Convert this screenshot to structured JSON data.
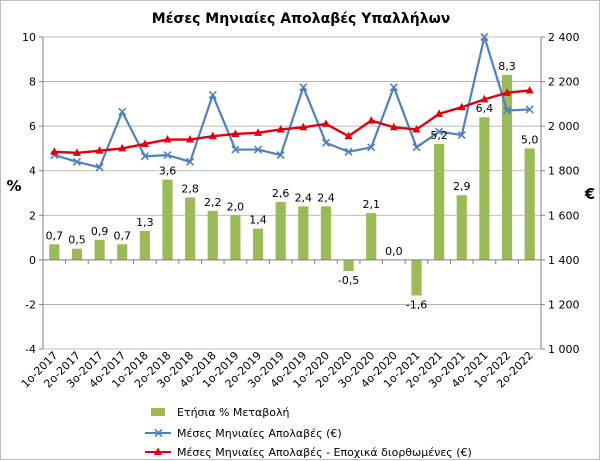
{
  "chart_data": {
    "type": "bar",
    "title": "Μέσες Μηνιαίες Απολαβές Υπαλλήλων",
    "y_left_unit": "%",
    "y_right_unit": "€",
    "y_left_lim": [
      -4,
      10
    ],
    "y_left_ticks": [
      "-4",
      "-2",
      "0",
      "2",
      "4",
      "6",
      "8",
      "10"
    ],
    "y_right_lim": [
      1000,
      2400
    ],
    "y_right_ticks": [
      "1 000",
      "1 200",
      "1 400",
      "1 600",
      "1 800",
      "2 000",
      "2 200",
      "2 400"
    ],
    "grid": true,
    "legend_position": "bottom-left",
    "categories": [
      "1o-2017",
      "2o-2017",
      "3o-2017",
      "4o-2017",
      "1o-2018",
      "2o-2018",
      "3o-2018",
      "4o-2018",
      "1o-2019",
      "2o-2019",
      "3o-2019",
      "4o-2019",
      "1o-2020",
      "2o-2020",
      "3o-2020",
      "4o-2020",
      "1o-2021",
      "2o-2021",
      "3o-2021",
      "4o-2021",
      "1o-2022",
      "2o-2022"
    ],
    "series": [
      {
        "name": "Ετήσια % Μεταβολή",
        "type": "bar",
        "axis": "left",
        "color": "#9bbb59",
        "values": [
          0.7,
          0.5,
          0.9,
          0.7,
          1.3,
          3.6,
          2.8,
          2.2,
          2.0,
          1.4,
          2.6,
          2.4,
          2.4,
          -0.5,
          2.1,
          0.0,
          -1.6,
          5.2,
          2.9,
          6.4,
          8.3,
          5.0
        ],
        "labels": [
          "0,7",
          "0,5",
          "0,9",
          "0,7",
          "1,3",
          "3,6",
          "2,8",
          "2,2",
          "2,0",
          "1,4",
          "2,6",
          "2,4",
          "2,4",
          "-0,5",
          "2,1",
          "0,0",
          "-1,6",
          "5,2",
          "2,9",
          "6,4",
          "8,3",
          "5,0"
        ]
      },
      {
        "name": "Μέσες Μηνιαίες Απολαβές (€)",
        "type": "line",
        "axis": "right",
        "color": "#4f81bd",
        "marker": "x",
        "values": [
          1870,
          1840,
          1815,
          2065,
          1865,
          1870,
          1840,
          2140,
          1895,
          1895,
          1870,
          2175,
          1925,
          1885,
          1905,
          2175,
          1905,
          1975,
          1960,
          2400,
          2070,
          2075
        ]
      },
      {
        "name": "Μέσες Μηνιαίες Απολαβές - Εποχικά διορθωμένες (€)",
        "type": "line",
        "axis": "right",
        "color": "#e0000f",
        "marker": "triangle",
        "values": [
          1885,
          1880,
          1890,
          1900,
          1920,
          1940,
          1940,
          1955,
          1965,
          1970,
          1985,
          1995,
          2010,
          1955,
          2025,
          1995,
          1985,
          2055,
          2085,
          2120,
          2150,
          2160
        ]
      }
    ]
  }
}
